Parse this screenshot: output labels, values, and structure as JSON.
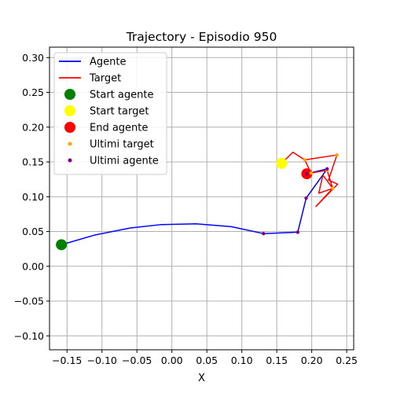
{
  "chart_data": {
    "type": "line",
    "title": "Trajectory - Episodio 950",
    "xlabel": "X",
    "ylabel": "",
    "xlim": [
      -0.175,
      0.26
    ],
    "ylim": [
      -0.12,
      0.315
    ],
    "xticks": [
      -0.15,
      -0.1,
      -0.05,
      0.0,
      0.05,
      0.1,
      0.15,
      0.2,
      0.25
    ],
    "xtick_labels": [
      "−0.15",
      "−0.10",
      "−0.05",
      "0.00",
      "0.05",
      "0.10",
      "0.15",
      "0.20",
      "0.25"
    ],
    "yticks": [
      -0.1,
      -0.05,
      0.0,
      0.05,
      0.1,
      0.15,
      0.2,
      0.25,
      0.3
    ],
    "ytick_labels": [
      "−0.10",
      "−0.05",
      "0.00",
      "0.05",
      "0.10",
      "0.15",
      "0.20",
      "0.25",
      "0.30"
    ],
    "grid": true,
    "legend_position": "top-left",
    "series": [
      {
        "name": "Agente",
        "kind": "line",
        "color": "#0000ff",
        "x": [
          -0.158,
          -0.11,
          -0.06,
          -0.015,
          0.035,
          0.085,
          0.131,
          0.18,
          0.192,
          0.222,
          0.193
        ],
        "y": [
          0.031,
          0.045,
          0.055,
          0.06,
          0.061,
          0.057,
          0.047,
          0.049,
          0.098,
          0.14,
          0.133
        ]
      },
      {
        "name": "Target",
        "kind": "line",
        "color": "#ff0000",
        "x": [
          0.157,
          0.173,
          0.19,
          0.236,
          0.224,
          0.237,
          0.206,
          0.23,
          0.216,
          0.21,
          0.23,
          0.222,
          0.199,
          0.19
        ],
        "y": [
          0.148,
          0.164,
          0.153,
          0.16,
          0.124,
          0.118,
          0.086,
          0.112,
          0.131,
          0.105,
          0.112,
          0.138,
          0.134,
          0.153
        ]
      },
      {
        "name": "Start agente",
        "kind": "marker",
        "color": "#008000",
        "x": [
          -0.158
        ],
        "y": [
          0.031
        ]
      },
      {
        "name": "Start target",
        "kind": "marker",
        "color": "#ffff00",
        "x": [
          0.157
        ],
        "y": [
          0.148
        ]
      },
      {
        "name": "End agente",
        "kind": "marker",
        "color": "#ff0000",
        "x": [
          0.193
        ],
        "y": [
          0.133
        ]
      },
      {
        "name": "Ultimi target",
        "kind": "scatter",
        "color": "#ffa500",
        "x": [
          0.236,
          0.19,
          0.23,
          0.222,
          0.199
        ],
        "y": [
          0.16,
          0.153,
          0.112,
          0.138,
          0.134
        ]
      },
      {
        "name": "Ultimi agente",
        "kind": "scatter",
        "color": "#800080",
        "x": [
          0.131,
          0.18,
          0.192,
          0.222,
          0.193
        ],
        "y": [
          0.047,
          0.049,
          0.098,
          0.14,
          0.133
        ]
      }
    ]
  }
}
